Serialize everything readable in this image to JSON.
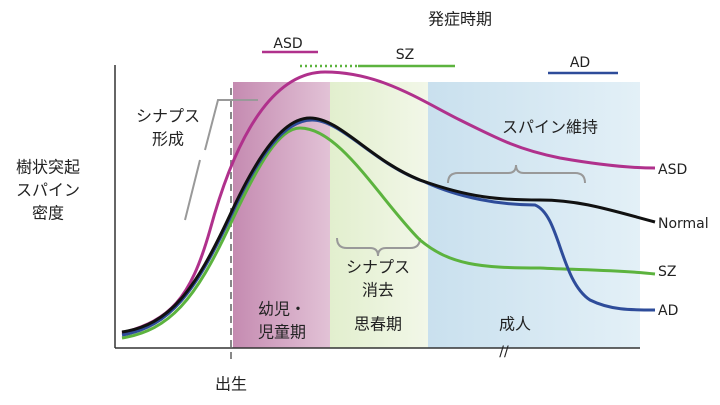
{
  "title": "発症時期",
  "onset": {
    "asd": "ASD",
    "sz": "SZ",
    "ad": "AD"
  },
  "y_axis_label": [
    "樹状突起",
    "スパイン",
    "密度"
  ],
  "annotations": {
    "synapse_formation": [
      "シナプス",
      "形成"
    ],
    "synapse_elimination": [
      "シナプス",
      "消去"
    ],
    "spine_maintenance": "スパイン維持"
  },
  "phases": {
    "childhood": [
      "幼児・",
      "児童期"
    ],
    "adolescence": "思春期",
    "adult": "成人"
  },
  "birth": "出生",
  "curves": {
    "asd": "ASD",
    "normal": "Normal",
    "sz": "SZ",
    "ad": "AD"
  }
}
